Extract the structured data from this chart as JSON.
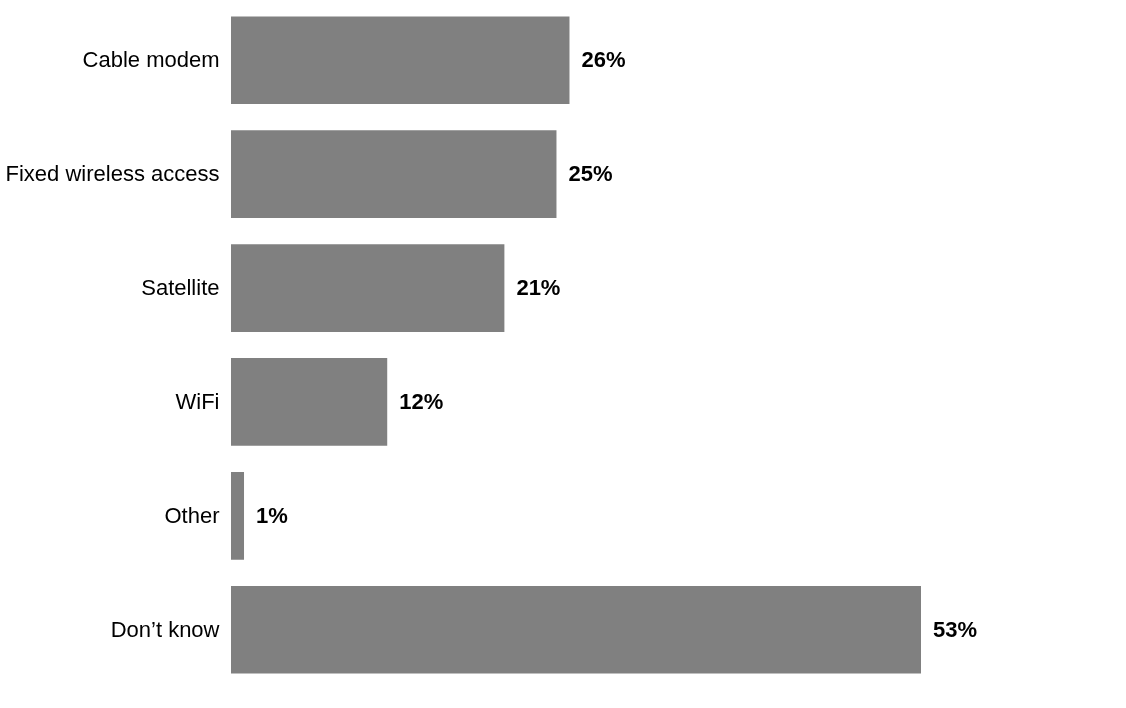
{
  "chart_data": {
    "type": "bar",
    "orientation": "horizontal",
    "categories": [
      "Cable modem",
      "Fixed wireless access",
      "Satellite",
      "WiFi",
      "Other",
      "Don’t know"
    ],
    "values": [
      26,
      25,
      21,
      12,
      1,
      53
    ],
    "value_labels": [
      "26%",
      "25%",
      "21%",
      "12%",
      "1%",
      "53%"
    ],
    "color": "#808080",
    "xlim": [
      0,
      53
    ],
    "tick_labels": "y",
    "grid": false
  }
}
